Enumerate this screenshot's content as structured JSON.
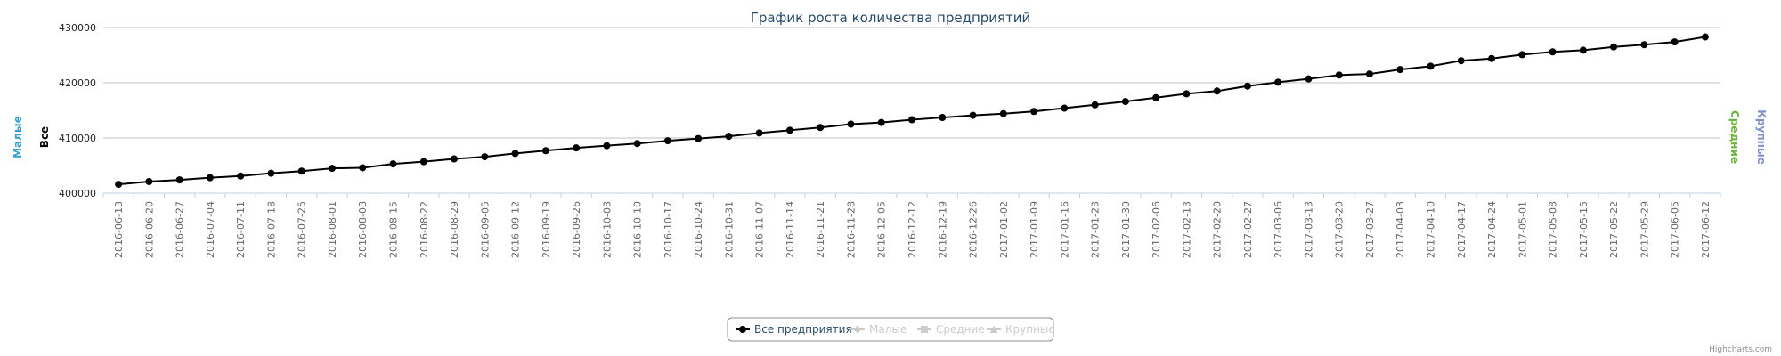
{
  "chart_data": {
    "type": "line",
    "title": "График роста количества предприятий",
    "credits": "Highcharts.com",
    "axis_titles": [
      {
        "text": "Малые",
        "color": "#2fa3d6",
        "side": "left"
      },
      {
        "text": "Все",
        "color": "#000000",
        "side": "left"
      },
      {
        "text": "Средние",
        "color": "#6bb536",
        "side": "right"
      },
      {
        "text": "Крупные",
        "color": "#7f8fcf",
        "side": "right"
      }
    ],
    "categories": [
      "2016-06-13",
      "2016-06-20",
      "2016-06-27",
      "2016-07-04",
      "2016-07-11",
      "2016-07-18",
      "2016-07-25",
      "2016-08-01",
      "2016-08-08",
      "2016-08-15",
      "2016-08-22",
      "2016-08-29",
      "2016-09-05",
      "2016-09-12",
      "2016-09-19",
      "2016-09-26",
      "2016-10-03",
      "2016-10-10",
      "2016-10-17",
      "2016-10-24",
      "2016-10-31",
      "2016-11-07",
      "2016-11-14",
      "2016-11-21",
      "2016-11-28",
      "2016-12-05",
      "2016-12-12",
      "2016-12-19",
      "2016-12-26",
      "2017-01-02",
      "2017-01-09",
      "2017-01-16",
      "2017-01-23",
      "2017-01-30",
      "2017-02-06",
      "2017-02-13",
      "2017-02-20",
      "2017-02-27",
      "2017-03-06",
      "2017-03-13",
      "2017-03-20",
      "2017-03-27",
      "2017-04-03",
      "2017-04-10",
      "2017-04-17",
      "2017-04-24",
      "2017-05-01",
      "2017-05-08",
      "2017-05-15",
      "2017-05-22",
      "2017-05-29",
      "2017-06-05",
      "2017-06-12"
    ],
    "series": [
      {
        "name": "Все предприятия",
        "color": "#000000",
        "visible": true,
        "marker": "circle",
        "values": [
          401600,
          402100,
          402400,
          402800,
          403100,
          403600,
          404000,
          404500,
          404600,
          405300,
          405700,
          406200,
          406600,
          407200,
          407700,
          408200,
          408600,
          409000,
          409500,
          409900,
          410300,
          410900,
          411400,
          411900,
          412500,
          412800,
          413300,
          413700,
          414100,
          414400,
          414800,
          415400,
          416000,
          416600,
          417300,
          418000,
          418500,
          419400,
          420100,
          420700,
          421400,
          421600,
          422400,
          423000,
          424000,
          424400,
          425100,
          425600,
          425900,
          426500,
          426900,
          427400,
          428300
        ]
      },
      {
        "name": "Малые",
        "color": "#cccccc",
        "visible": false,
        "marker": "diamond"
      },
      {
        "name": "Средние",
        "color": "#cccccc",
        "visible": false,
        "marker": "square"
      },
      {
        "name": "Крупные",
        "color": "#cccccc",
        "visible": false,
        "marker": "triangle"
      }
    ],
    "ylim": [
      400000,
      430000
    ],
    "yticks": [
      400000,
      410000,
      420000,
      430000
    ],
    "grid": true
  }
}
